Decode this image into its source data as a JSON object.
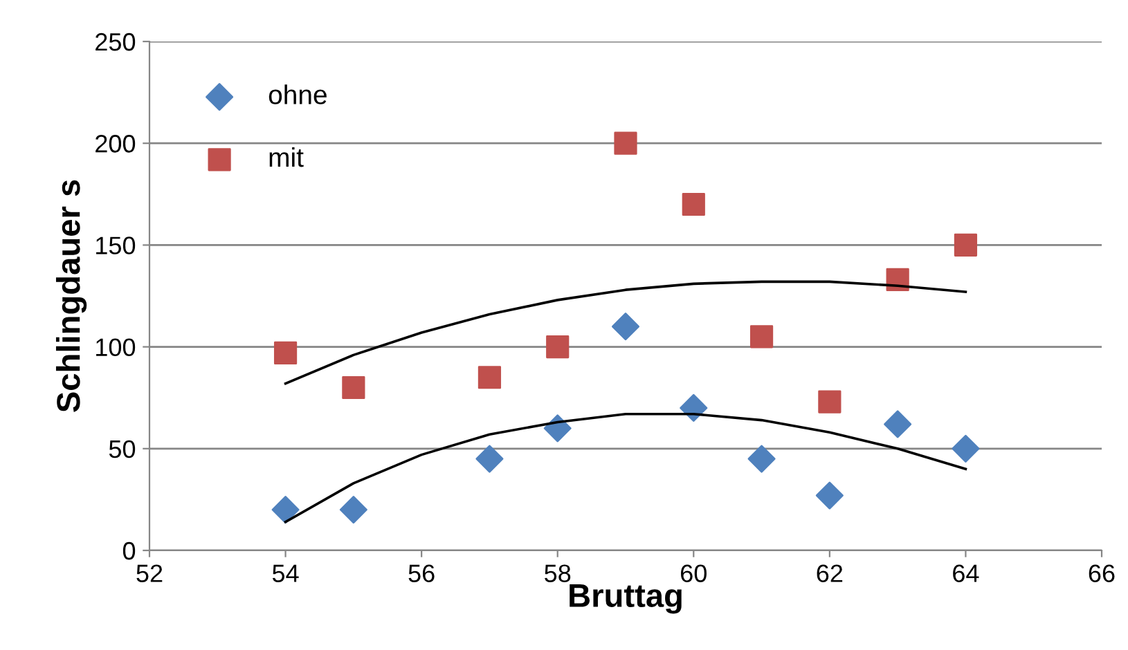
{
  "chart_data": {
    "type": "scatter",
    "xlabel": "Bruttag",
    "ylabel": "Schlingdauer s",
    "xlim": [
      52,
      66
    ],
    "xticks": [
      52,
      54,
      56,
      58,
      60,
      62,
      64,
      66
    ],
    "ylim": [
      0,
      250
    ],
    "yticks": [
      0,
      50,
      100,
      150,
      200,
      250
    ],
    "grid": "y",
    "legend": "top left",
    "series": [
      {
        "name": "ohne",
        "marker": "diamond",
        "color": "#4f81bd",
        "x": [
          54,
          55,
          57,
          58,
          59,
          60,
          61,
          62,
          63,
          64
        ],
        "values": [
          20,
          20,
          45,
          60,
          110,
          70,
          45,
          27,
          62,
          50
        ]
      },
      {
        "name": "mit",
        "marker": "square",
        "color": "#c0504d",
        "x": [
          54,
          55,
          57,
          58,
          59,
          60,
          61,
          62,
          63,
          64
        ],
        "values": [
          97,
          80,
          85,
          100,
          200,
          170,
          105,
          73,
          133,
          150
        ]
      },
      {
        "type": "line",
        "marker": "none",
        "line_style": "solid",
        "color": "#000000",
        "x": [
          54,
          55,
          56,
          57,
          58,
          59,
          60,
          61,
          62,
          63,
          64
        ],
        "values": [
          14,
          33,
          47,
          57,
          63,
          67,
          67,
          64,
          58,
          50,
          40
        ]
      },
      {
        "type": "line",
        "marker": "none",
        "line_style": "solid",
        "color": "#000000",
        "x": [
          54,
          55,
          56,
          57,
          58,
          59,
          60,
          61,
          62,
          63,
          64
        ],
        "values": [
          82,
          96,
          107,
          116,
          123,
          128,
          131,
          132,
          132,
          130,
          127
        ]
      }
    ]
  }
}
